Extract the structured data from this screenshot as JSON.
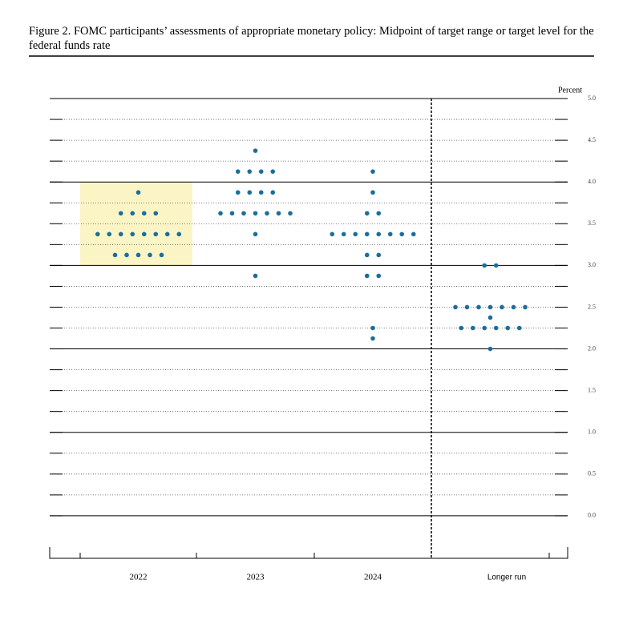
{
  "chart_data": {
    "type": "dot",
    "title": "Figure 2.  FOMC participants’ assessments of appropriate monetary policy: Midpoint of target range or target level for the federal funds rate",
    "y_label": "Percent",
    "color": "#1b6e9b",
    "highlight_color": "#fbf5c6",
    "columns": [
      {
        "label": "2022",
        "highlight": [
          3.0,
          4.0
        ],
        "values": [
          3.875,
          3.625,
          3.625,
          3.625,
          3.625,
          3.375,
          3.375,
          3.375,
          3.375,
          3.375,
          3.375,
          3.375,
          3.375,
          3.125,
          3.125,
          3.125,
          3.125,
          3.125
        ]
      },
      {
        "label": "2023",
        "values": [
          4.375,
          4.125,
          4.125,
          4.125,
          4.125,
          3.875,
          3.875,
          3.875,
          3.875,
          3.625,
          3.625,
          3.625,
          3.625,
          3.625,
          3.625,
          3.625,
          3.375,
          2.875
        ]
      },
      {
        "label": "2024",
        "values": [
          4.125,
          3.875,
          3.625,
          3.625,
          3.375,
          3.375,
          3.375,
          3.375,
          3.375,
          3.375,
          3.375,
          3.375,
          3.125,
          3.125,
          2.875,
          2.875,
          2.25,
          2.125
        ]
      },
      {
        "label": "Longer run",
        "values": [
          3.0,
          3.0,
          2.5,
          2.5,
          2.5,
          2.5,
          2.5,
          2.5,
          2.5,
          2.375,
          2.25,
          2.25,
          2.25,
          2.25,
          2.25,
          2.25,
          2.0
        ]
      }
    ],
    "ylim": [
      -0.5,
      5.1
    ],
    "yticks": [
      {
        "value": 5,
        "label": "5.0"
      },
      {
        "value": 4.5,
        "label": "4.5"
      },
      {
        "value": 4,
        "label": "4.0"
      },
      {
        "value": 3.5,
        "label": "3.5"
      },
      {
        "value": 3,
        "label": "3.0"
      },
      {
        "value": 2.5,
        "label": "2.5"
      },
      {
        "value": 2,
        "label": "2.0"
      },
      {
        "value": 1.5,
        "label": "1.5"
      },
      {
        "value": 1,
        "label": "1.0"
      },
      {
        "value": 0.5,
        "label": "0.5"
      },
      {
        "value": 0,
        "label": "0.0"
      }
    ],
    "minor_yticks": [
      4.75,
      4.25,
      3.75,
      3.25,
      2.75,
      2.25,
      1.75,
      1.25,
      0.75,
      0.25
    ],
    "grid": true
  }
}
